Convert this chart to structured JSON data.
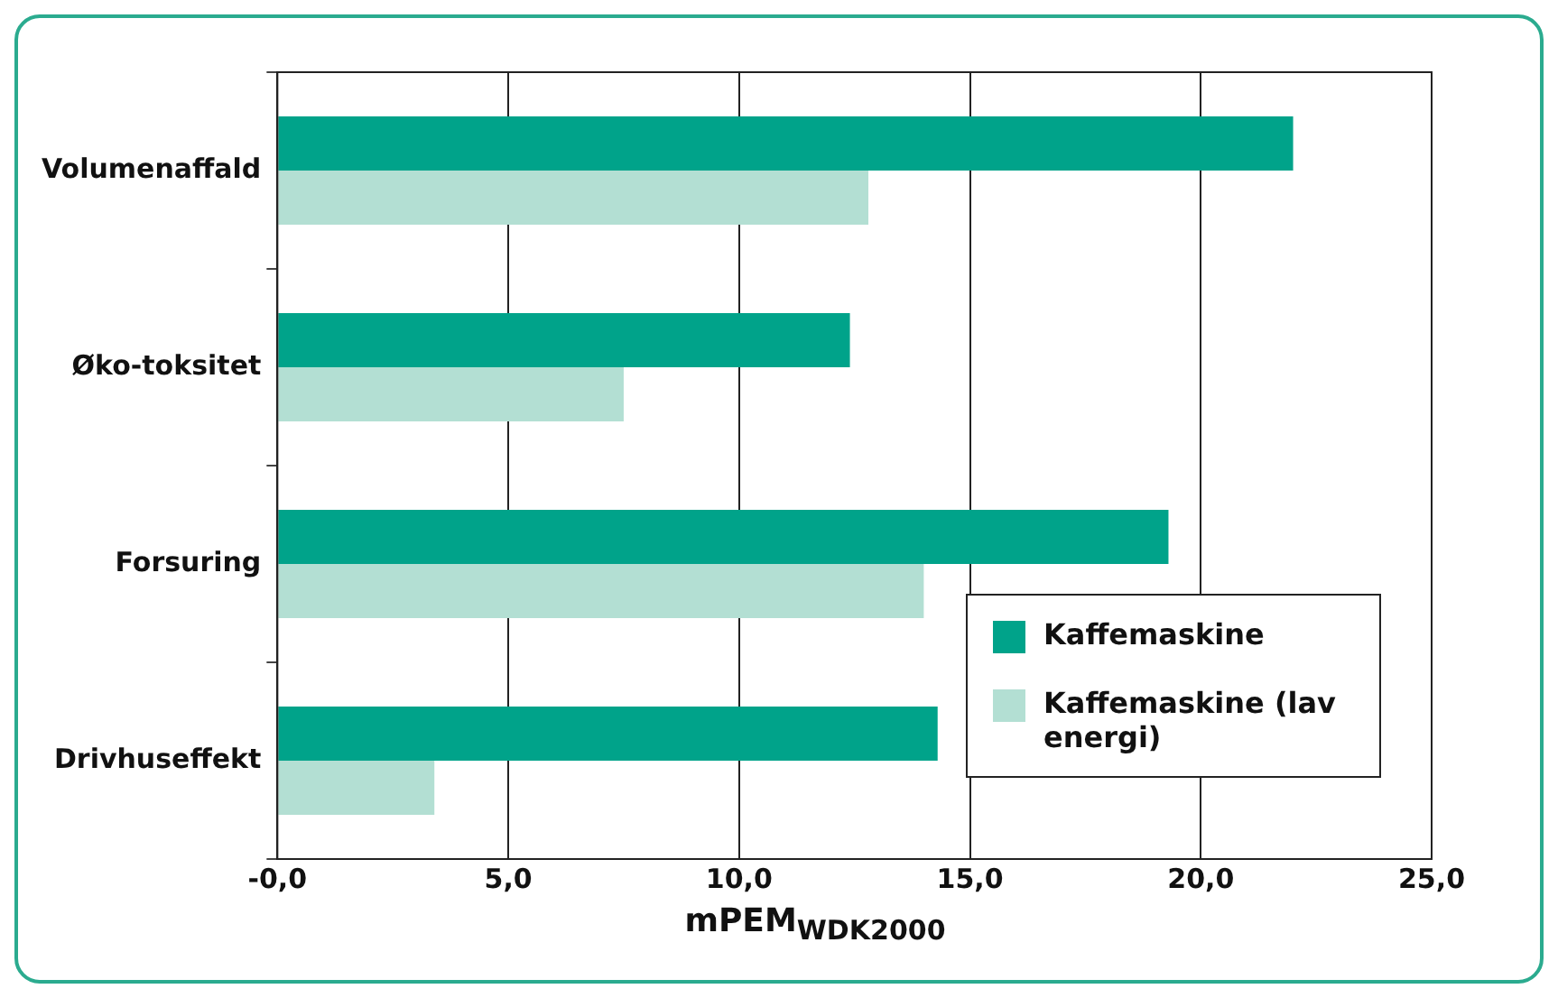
{
  "chart_data": {
    "type": "bar",
    "orientation": "horizontal",
    "xlabel": "mPEM$_{WDK2000}$",
    "categories": [
      "Volumenaffald",
      "Øko-toksitet",
      "Forsuring",
      "Drivhuseffekt"
    ],
    "series": [
      {
        "name": "Kaffemaskine",
        "color": "#00a38a",
        "values": [
          22.0,
          12.4,
          19.3,
          14.3
        ]
      },
      {
        "name": "Kaffemaskine (lav energi)",
        "color": "#b3dfd3",
        "values": [
          12.8,
          7.5,
          14.0,
          3.4
        ]
      }
    ],
    "xlim": [
      0,
      25
    ],
    "xticks": [
      {
        "value": 0,
        "label": "-0,0"
      },
      {
        "value": 5,
        "label": "5,0"
      },
      {
        "value": 10,
        "label": "10,0"
      },
      {
        "value": 15,
        "label": "15,0"
      },
      {
        "value": 20,
        "label": "20,0"
      },
      {
        "value": 25,
        "label": "25,0"
      }
    ],
    "grid": "x",
    "legend": "bottom right"
  }
}
